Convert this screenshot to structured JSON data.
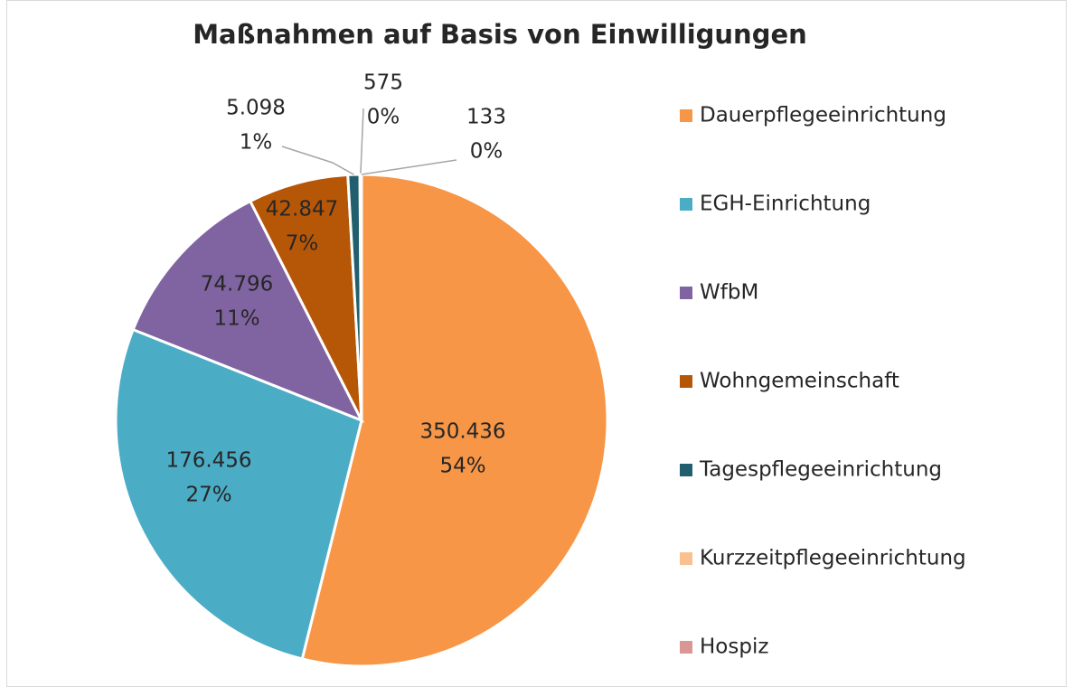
{
  "chart_data": {
    "type": "pie",
    "title": "Maßnahmen auf Basis von Einwilligungen",
    "categories": [
      "Dauerpflegeeinrichtung",
      "EGH-Einrichtung",
      "WfbM",
      "Wohngemeinschaft",
      "Tagespflegeeinrichtung",
      "Kurzzeitpflegeeinrichtung",
      "Hospiz"
    ],
    "values": [
      350436,
      176456,
      74796,
      42847,
      5098,
      575,
      133
    ],
    "value_labels": [
      "350.436",
      "176.456",
      "74.796",
      "42.847",
      "5.098",
      "575",
      "133"
    ],
    "percent_labels": [
      "54%",
      "27%",
      "11%",
      "7%",
      "1%",
      "0%",
      "0%"
    ],
    "colors": [
      "#F79646",
      "#4BACC6",
      "#8064A2",
      "#B65708",
      "#215F6E",
      "#FAC090",
      "#D99694"
    ],
    "legend": "right"
  }
}
